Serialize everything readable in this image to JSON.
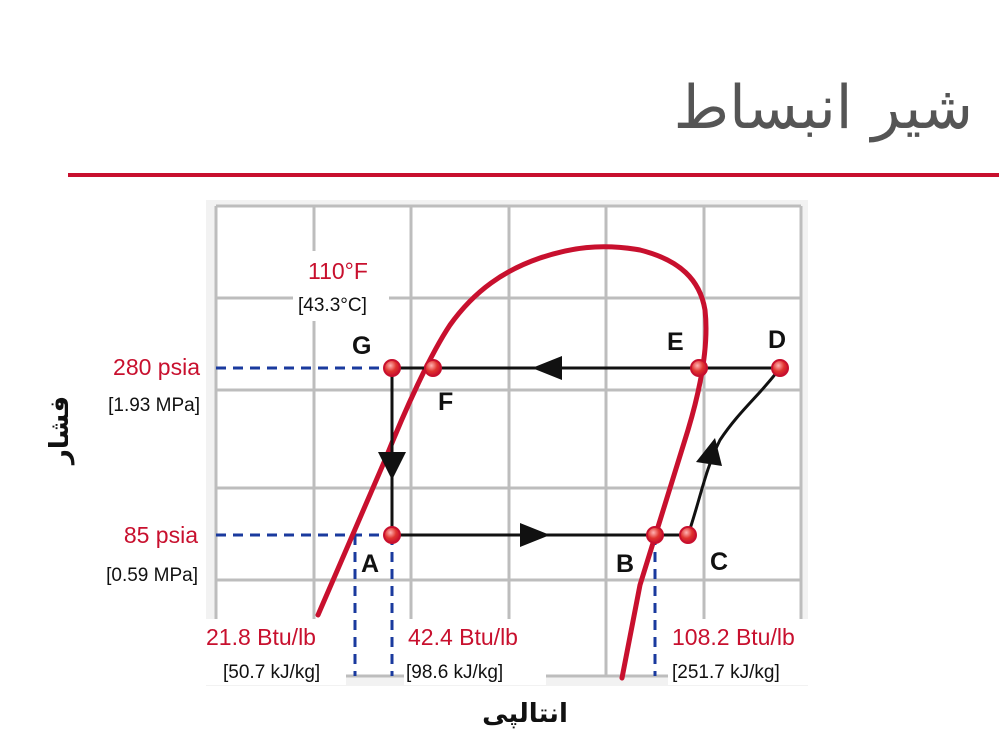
{
  "title": "شیر انبساط",
  "axes": {
    "y_label": "فشار",
    "x_label": "انتالپی"
  },
  "temperature": {
    "value": "110°F",
    "si": "[43.3°C]"
  },
  "pressures": [
    {
      "value": "280 psia",
      "si": "[1.93 MPa]"
    },
    {
      "value": "85 psia",
      "si": "[0.59 MPa]"
    }
  ],
  "enthalpies": [
    {
      "value": "21.8 Btu/lb",
      "si": "[50.7 kJ/kg]"
    },
    {
      "value": "42.4 Btu/lb",
      "si": "[98.6 kJ/kg]"
    },
    {
      "value": "108.2 Btu/lb",
      "si": "[251.7 kJ/kg]"
    }
  ],
  "points": [
    "A",
    "B",
    "C",
    "D",
    "E",
    "F",
    "G"
  ],
  "colors": {
    "accent": "#c8102e",
    "title_text": "#555555",
    "grid": "#bdbdbd",
    "dashed": "#1a3a9e",
    "point_fill": "#e0342f"
  }
}
